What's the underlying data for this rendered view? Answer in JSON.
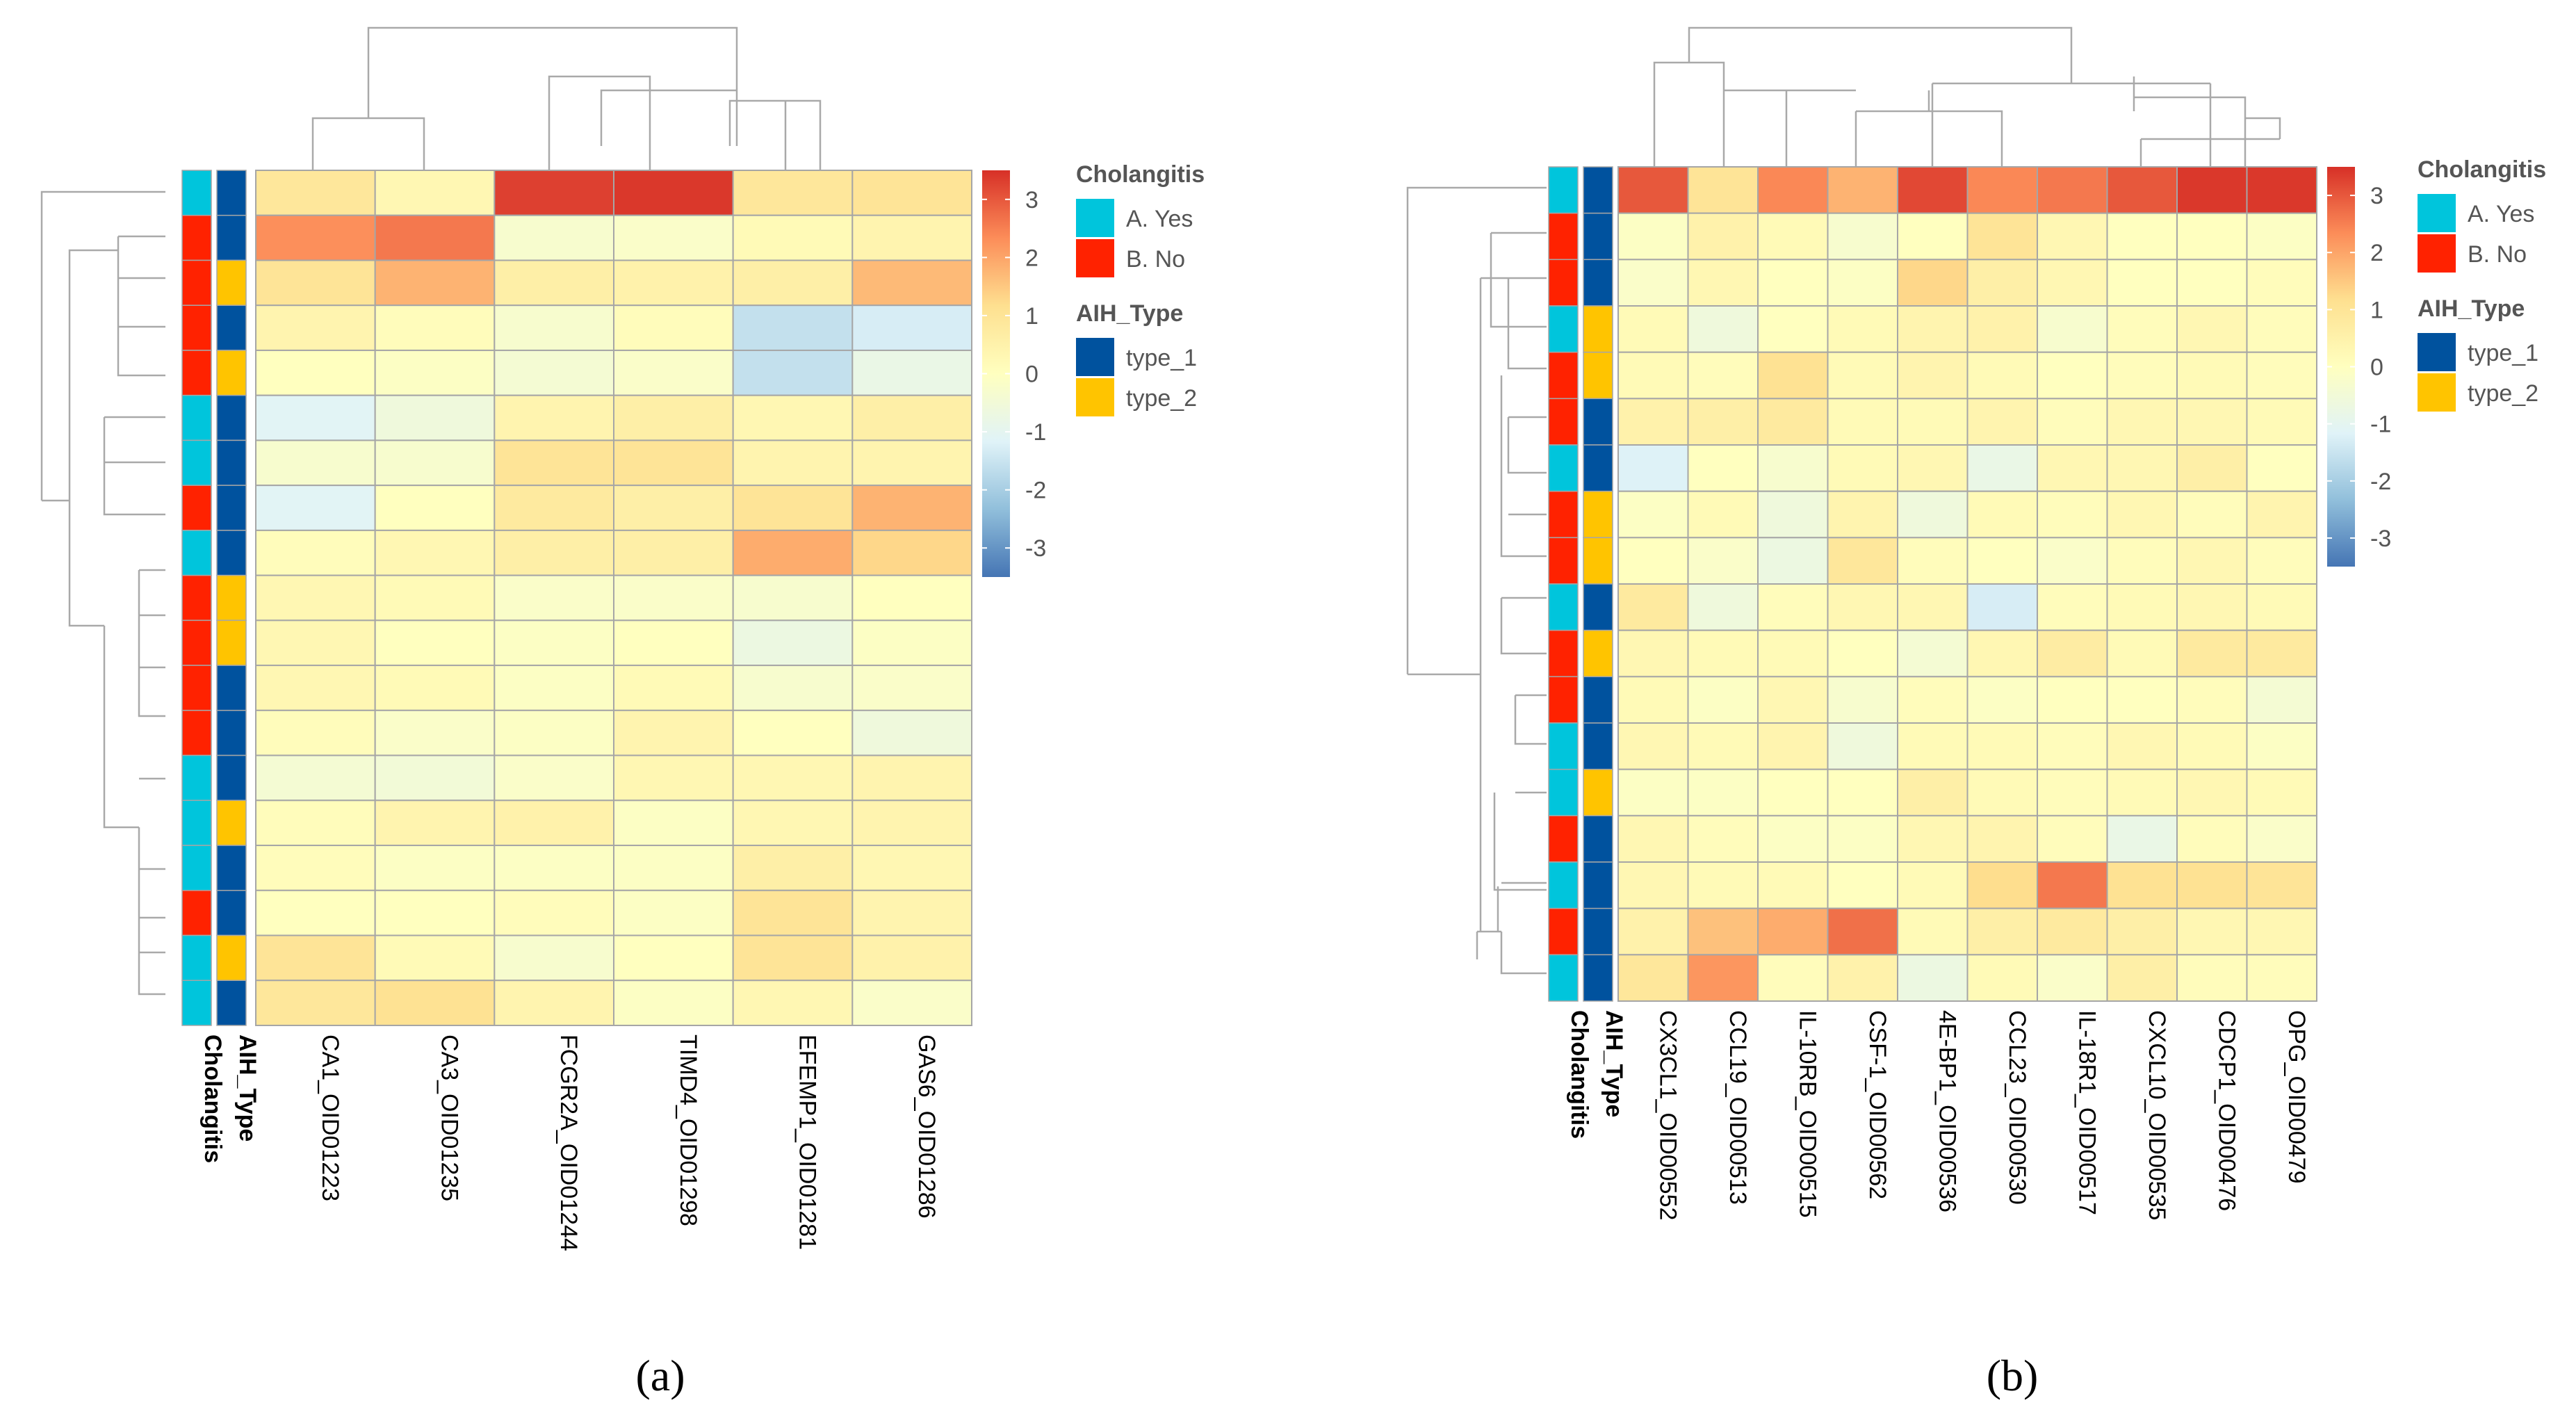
{
  "colors": {
    "cholangitis": {
      "A. Yes": "#00C5DC",
      "B. No": "#FF2200"
    },
    "aih_type": {
      "type_1": "#00529E",
      "type_2": "#FFC400"
    },
    "scale": [
      "#4575B4",
      "#91BFDB",
      "#E0F3F8",
      "#FFFFBF",
      "#FEE090",
      "#FC8D59",
      "#D73027"
    ],
    "dendrogram": "#A9A9A9",
    "grid": "#A6A6A6"
  },
  "legend": {
    "cholangitis_title": "Cholangitis",
    "cholangitis_items": [
      "A. Yes",
      "B. No"
    ],
    "aih_title": "AIH_Type",
    "aih_items": [
      "type_1",
      "type_2"
    ]
  },
  "chart_data": [
    {
      "type": "heatmap",
      "title": "(a)",
      "row_annotation_labels": [
        "Cholangitis",
        "AIH_Type"
      ],
      "columns": [
        "CA1_OID01223",
        "CA3_OID01235",
        "FCGR2A_OID01244",
        "TIMD4_OID01298",
        "EFEMP1_OID01281",
        "GAS6_OID01286"
      ],
      "colorbar": {
        "range": [
          -3.5,
          3.5
        ],
        "ticks": [
          3,
          2,
          1,
          0,
          -1,
          -2,
          -3
        ]
      },
      "cholangitis": [
        "A. Yes",
        "B. No",
        "B. No",
        "B. No",
        "B. No",
        "A. Yes",
        "A. Yes",
        "B. No",
        "A. Yes",
        "B. No",
        "B. No",
        "B. No",
        "B. No",
        "A. Yes",
        "A. Yes",
        "A. Yes",
        "B. No",
        "A. Yes",
        "A. Yes"
      ],
      "aih_type": [
        "type_1",
        "type_1",
        "type_2",
        "type_1",
        "type_2",
        "type_1",
        "type_1",
        "type_1",
        "type_1",
        "type_2",
        "type_2",
        "type_1",
        "type_1",
        "type_1",
        "type_2",
        "type_1",
        "type_1",
        "type_2",
        "type_1"
      ],
      "values": [
        [
          0.9,
          0.3,
          3.3,
          3.4,
          0.9,
          1.0
        ],
        [
          2.3,
          2.6,
          -0.3,
          -0.2,
          0.2,
          0.4
        ],
        [
          1.0,
          1.8,
          0.6,
          0.5,
          0.6,
          1.7
        ],
        [
          0.4,
          0.1,
          -0.3,
          0.1,
          -1.6,
          -1.3
        ],
        [
          0.0,
          -0.1,
          -0.4,
          -0.2,
          -1.6,
          -0.8
        ],
        [
          -1.1,
          -0.6,
          0.4,
          0.6,
          0.3,
          0.6
        ],
        [
          -0.3,
          -0.3,
          1.0,
          1.0,
          0.4,
          0.4
        ],
        [
          -1.1,
          0.0,
          0.8,
          0.6,
          1.0,
          1.8
        ],
        [
          0.1,
          0.3,
          0.6,
          0.6,
          1.9,
          1.3
        ],
        [
          0.3,
          0.2,
          -0.2,
          -0.2,
          -0.3,
          0.0
        ],
        [
          0.3,
          0.0,
          -0.1,
          0.0,
          -0.7,
          -0.1
        ],
        [
          0.3,
          0.2,
          -0.1,
          0.2,
          -0.3,
          -0.2
        ],
        [
          0.1,
          -0.2,
          -0.1,
          0.4,
          0.0,
          -0.6
        ],
        [
          -0.4,
          -0.5,
          -0.2,
          0.3,
          0.3,
          0.4
        ],
        [
          0.1,
          0.4,
          0.5,
          -0.1,
          0.3,
          0.4
        ],
        [
          0.1,
          -0.1,
          -0.1,
          -0.1,
          0.6,
          0.3
        ],
        [
          0.0,
          0.0,
          0.1,
          -0.1,
          1.0,
          0.4
        ],
        [
          1.0,
          0.2,
          -0.3,
          0.0,
          1.0,
          0.5
        ],
        [
          0.9,
          1.1,
          0.4,
          -0.1,
          0.3,
          -0.2
        ]
      ]
    },
    {
      "type": "heatmap",
      "title": "(b)",
      "row_annotation_labels": [
        "Cholangitis",
        "AIH_Type"
      ],
      "columns": [
        "CX3CL1_OID00552",
        "CCL19_OID00513",
        "IL-10RB_OID00515",
        "CSF-1_OID00562",
        "4E-BP1_OID00536",
        "CCL23_OID00530",
        "IL-18R1_OID00517",
        "CXCL10_OID00535",
        "CDCP1_OID00476",
        "OPG_OID00479"
      ],
      "colorbar": {
        "range": [
          -3.5,
          3.5
        ],
        "ticks": [
          3,
          2,
          1,
          0,
          -1,
          -2,
          -3
        ]
      },
      "cholangitis": [
        "A. Yes",
        "B. No",
        "B. No",
        "A. Yes",
        "B. No",
        "B. No",
        "A. Yes",
        "B. No",
        "B. No",
        "A. Yes",
        "B. No",
        "B. No",
        "A. Yes",
        "A. Yes",
        "B. No",
        "A. Yes",
        "B. No",
        "A. Yes"
      ],
      "aih_type": [
        "type_1",
        "type_1",
        "type_1",
        "type_2",
        "type_2",
        "type_1",
        "type_1",
        "type_2",
        "type_2",
        "type_1",
        "type_2",
        "type_1",
        "type_1",
        "type_2",
        "type_1",
        "type_1",
        "type_1",
        "type_1"
      ],
      "values": [
        [
          3.0,
          1.0,
          2.4,
          1.8,
          3.2,
          2.4,
          2.6,
          3.0,
          3.4,
          3.4
        ],
        [
          -0.1,
          0.5,
          0.2,
          -0.3,
          0.0,
          1.0,
          0.3,
          0.0,
          0.0,
          -0.1
        ],
        [
          -0.2,
          0.3,
          0.0,
          -0.1,
          1.3,
          0.6,
          0.3,
          0.0,
          0.0,
          0.1
        ],
        [
          0.2,
          -0.6,
          0.0,
          0.2,
          0.4,
          0.5,
          -0.3,
          0.1,
          0.3,
          0.1
        ],
        [
          0.2,
          0.1,
          1.1,
          0.2,
          0.4,
          0.2,
          0.0,
          0.1,
          0.2,
          0.1
        ],
        [
          0.5,
          0.6,
          0.8,
          0.2,
          0.2,
          0.4,
          0.1,
          0.3,
          0.3,
          0.2
        ],
        [
          -1.2,
          0.0,
          -0.3,
          0.2,
          0.3,
          -0.8,
          0.3,
          0.3,
          0.6,
          0.0
        ],
        [
          -0.1,
          0.2,
          -0.6,
          0.4,
          -0.6,
          0.2,
          0.1,
          0.3,
          0.1,
          0.4
        ],
        [
          0.0,
          -0.2,
          -0.7,
          0.9,
          0.1,
          0.0,
          -0.2,
          0.1,
          0.3,
          0.1
        ],
        [
          0.8,
          -0.6,
          0.1,
          0.3,
          0.3,
          -1.3,
          0.1,
          0.2,
          0.3,
          0.2
        ],
        [
          0.3,
          0.2,
          0.2,
          0.0,
          -0.4,
          0.3,
          0.7,
          0.2,
          0.8,
          0.8
        ],
        [
          0.2,
          -0.1,
          0.3,
          -0.3,
          0.1,
          -0.1,
          0.0,
          0.0,
          0.1,
          -0.4
        ],
        [
          0.3,
          0.2,
          0.4,
          -0.6,
          0.2,
          0.2,
          0.1,
          0.3,
          0.2,
          -0.1
        ],
        [
          -0.1,
          -0.1,
          0.0,
          0.0,
          0.6,
          0.2,
          0.1,
          0.2,
          0.3,
          0.2
        ],
        [
          0.3,
          0.1,
          -0.1,
          -0.1,
          0.3,
          0.4,
          0.1,
          -0.8,
          0.1,
          -0.2
        ],
        [
          0.3,
          0.2,
          0.2,
          0.0,
          0.2,
          1.2,
          2.6,
          1.1,
          1.1,
          1.0
        ],
        [
          0.5,
          1.6,
          1.9,
          2.7,
          0.2,
          0.6,
          0.8,
          0.6,
          0.3,
          0.3
        ],
        [
          0.9,
          2.2,
          0.1,
          0.5,
          -0.7,
          0.2,
          -0.2,
          0.6,
          0.1,
          0.1
        ]
      ]
    }
  ]
}
